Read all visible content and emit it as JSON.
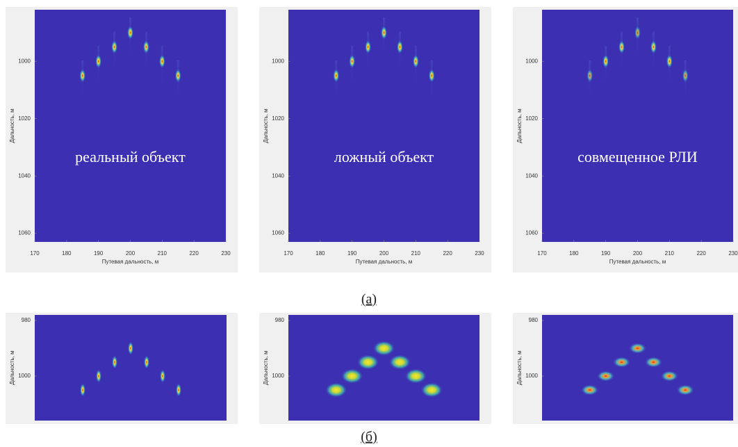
{
  "chart_data": [
    {
      "type": "scatter",
      "annotation": "реальный объект",
      "x_label": "Путевая дальность, м",
      "y_label": "Дальность, м",
      "x": [
        185,
        190,
        195,
        200,
        205,
        210,
        215
      ],
      "values": [
        1005,
        1000,
        995,
        990,
        995,
        1000,
        1005
      ],
      "xlim": [
        170,
        230
      ],
      "xticks": [
        170,
        180,
        190,
        200,
        210,
        220,
        230
      ],
      "ylim": [
        1063,
        982
      ],
      "yticks": [
        1000,
        1020,
        1040,
        1060
      ],
      "color": "#3c2fb2"
    },
    {
      "type": "scatter",
      "annotation": "ложный объект",
      "x_label": "Путевая дальность, м",
      "y_label": "Дальность, м",
      "x": [
        185,
        190,
        195,
        200,
        205,
        210,
        215
      ],
      "values": [
        1005,
        1000,
        995,
        990,
        995,
        1000,
        1005
      ],
      "xlim": [
        170,
        230
      ],
      "xticks": [
        170,
        180,
        190,
        200,
        210,
        220,
        230
      ],
      "ylim": [
        1063,
        982
      ],
      "yticks": [
        1000,
        1020,
        1040,
        1060
      ],
      "color": "#3c2fb2"
    },
    {
      "type": "scatter",
      "annotation": "совмещенное РЛИ",
      "x_label": "Путевая дальность, м",
      "y_label": "Дальность, м",
      "x": [
        185,
        190,
        195,
        200,
        205,
        210,
        215
      ],
      "values": [
        1005,
        1000,
        995,
        990,
        995,
        1000,
        1005
      ],
      "xlim": [
        170,
        230
      ],
      "xticks": [
        170,
        180,
        190,
        200,
        210,
        220,
        230
      ],
      "ylim": [
        1063,
        982
      ],
      "yticks": [
        1000,
        1020,
        1040,
        1060
      ],
      "color": "#3c2fb2"
    },
    {
      "type": "scatter",
      "y_label": "Дальность, м",
      "x": [
        185,
        190,
        195,
        200,
        205,
        210,
        215
      ],
      "values": [
        1005,
        1000,
        995,
        990,
        995,
        1000,
        1005
      ],
      "xlim": [
        170,
        230
      ],
      "ylim": [
        1016,
        978
      ],
      "yticks": [
        980,
        1000
      ],
      "color": "#3c2fb2"
    },
    {
      "type": "scatter",
      "y_label": "Дальность, м",
      "x": [
        185,
        190,
        195,
        200,
        205,
        210,
        215
      ],
      "values": [
        1005,
        1000,
        995,
        990,
        995,
        1000,
        1005
      ],
      "xlim": [
        170,
        230
      ],
      "ylim": [
        1016,
        978
      ],
      "yticks": [
        980,
        1000
      ],
      "color": "#3c2fb2"
    },
    {
      "type": "scatter",
      "y_label": "Дальность, м",
      "x": [
        185,
        190,
        195,
        200,
        205,
        210,
        215
      ],
      "values": [
        1005,
        1000,
        995,
        990,
        995,
        1000,
        1005
      ],
      "xlim": [
        170,
        230
      ],
      "ylim": [
        1016,
        978
      ],
      "yticks": [
        980,
        1000
      ],
      "color": "#3c2fb2"
    }
  ],
  "captions": [
    "(а)",
    "(б)"
  ]
}
